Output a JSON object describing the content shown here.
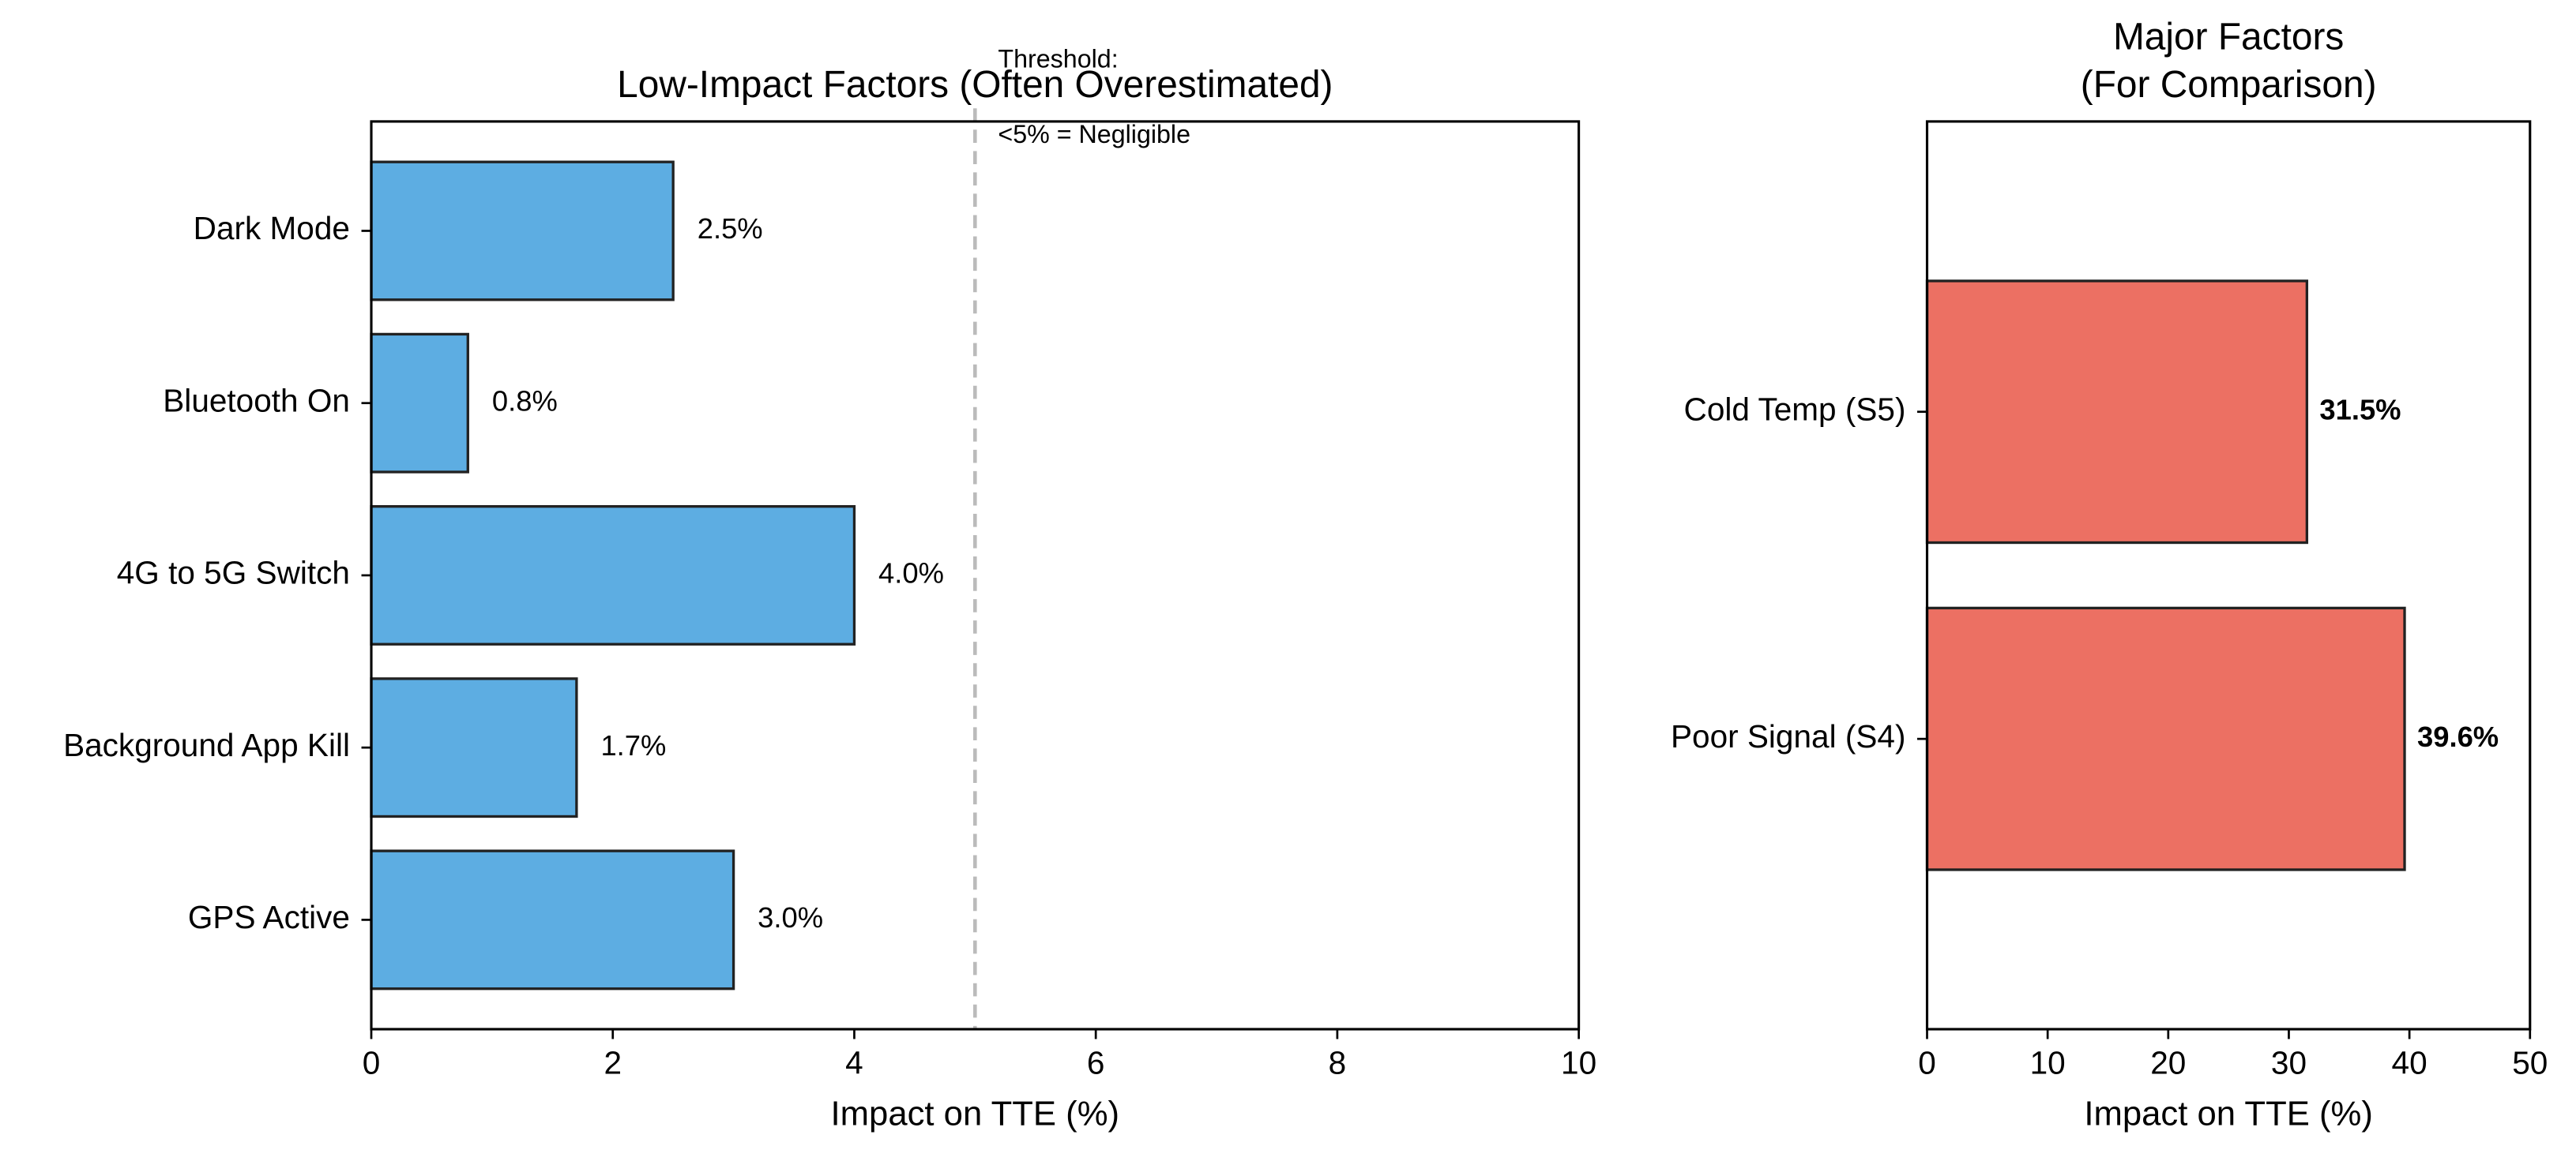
{
  "chart_data": [
    {
      "type": "barh",
      "title": "Low-Impact Factors (Often Overestimated)",
      "x_label": "Impact on TTE (%)",
      "categories": [
        "Dark Mode",
        "Bluetooth On",
        "4G to 5G Switch",
        "Background App Kill",
        "GPS Active"
      ],
      "values": [
        2.5,
        0.8,
        4.0,
        1.7,
        3.0
      ],
      "value_labels": [
        "2.5%",
        "0.8%",
        "4.0%",
        "1.7%",
        "3.0%"
      ],
      "color": "#5DADE2",
      "xlim": [
        0,
        10
      ],
      "xticks": [
        0,
        2,
        4,
        6,
        8,
        10
      ],
      "threshold": 5,
      "annotation": [
        "Threshold:",
        "<5% = Negligible"
      ]
    },
    {
      "type": "barh",
      "title": [
        "Major Factors",
        "(For Comparison)"
      ],
      "x_label": "Impact on TTE (%)",
      "categories": [
        "Cold Temp (S5)",
        "Poor Signal (S4)"
      ],
      "values": [
        31.5,
        39.6
      ],
      "value_labels": [
        "31.5%",
        "39.6%"
      ],
      "value_label_weight": "bold",
      "color": "#EC7063",
      "xlim": [
        0,
        50
      ],
      "xticks": [
        0,
        10,
        20,
        30,
        40,
        50
      ]
    }
  ]
}
